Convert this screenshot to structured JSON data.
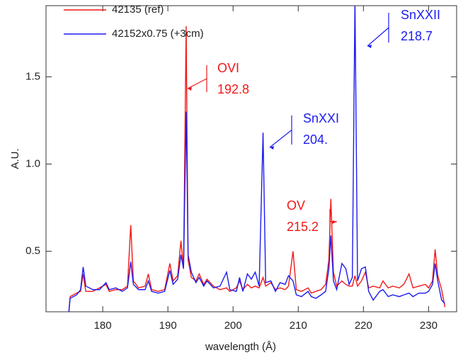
{
  "chart_data": {
    "type": "line",
    "xlabel": "wavelength (Å)",
    "ylabel": "A.U.",
    "xlim": [
      171.3,
      234.3
    ],
    "ylim": [
      0.153,
      1.908
    ],
    "xticks": [
      180,
      190,
      200,
      210,
      220,
      230
    ],
    "yticks": [
      0.5,
      {
        "value": 1,
        "label": "1.0"
      },
      1.5
    ],
    "legend": "upper left",
    "x": [
      174.0,
      174.8,
      175.0,
      176.0,
      176.6,
      177.0,
      177.4,
      178.5,
      179.5,
      180.5,
      181.0,
      182.0,
      183.0,
      183.8,
      184.3,
      184.7,
      185.5,
      186.5,
      187.0,
      187.5,
      188.5,
      189.5,
      190.3,
      190.8,
      191.5,
      192.0,
      192.4,
      192.8,
      193.1,
      193.6,
      194.3,
      194.8,
      195.5,
      196.0,
      197.0,
      198.0,
      199.0,
      199.5,
      200.5,
      201.0,
      201.5,
      202.2,
      202.8,
      203.4,
      204.0,
      204.6,
      205.0,
      205.8,
      206.5,
      207.2,
      208.0,
      208.5,
      209.2,
      209.7,
      210.5,
      211.5,
      212.0,
      212.7,
      213.5,
      214.2,
      214.7,
      215.0,
      215.4,
      215.9,
      216.7,
      217.3,
      217.8,
      218.3,
      218.7,
      219.1,
      219.7,
      220.3,
      220.8,
      221.5,
      222.5,
      223.0,
      223.8,
      224.5,
      225.5,
      226.2,
      227.0,
      227.6,
      228.5,
      229.5,
      230.0,
      230.6,
      231.0,
      231.4,
      232.0,
      232.5
    ],
    "series": [
      {
        "name": "42135 (ref)",
        "color": "#f01818",
        "values": [
          0.15,
          0.15,
          0.24,
          0.26,
          0.27,
          0.37,
          0.27,
          0.27,
          0.29,
          0.31,
          0.27,
          0.28,
          0.28,
          0.3,
          0.65,
          0.33,
          0.29,
          0.3,
          0.37,
          0.28,
          0.27,
          0.28,
          0.43,
          0.33,
          0.36,
          0.56,
          0.4,
          1.79,
          0.45,
          0.35,
          0.33,
          0.37,
          0.31,
          0.34,
          0.3,
          0.28,
          0.29,
          0.27,
          0.29,
          0.33,
          0.28,
          0.31,
          0.29,
          0.3,
          0.29,
          0.35,
          0.3,
          0.32,
          0.28,
          0.29,
          0.28,
          0.3,
          0.5,
          0.28,
          0.27,
          0.29,
          0.26,
          0.27,
          0.28,
          0.31,
          0.45,
          0.8,
          0.38,
          0.3,
          0.33,
          0.31,
          0.3,
          0.3,
          0.36,
          0.3,
          0.33,
          0.38,
          0.29,
          0.3,
          0.29,
          0.33,
          0.29,
          0.3,
          0.29,
          0.31,
          0.37,
          0.29,
          0.3,
          0.31,
          0.29,
          0.33,
          0.51,
          0.36,
          0.28,
          0.18
        ]
      },
      {
        "name": "42152x0.75 (+3cm)",
        "color": "#1c1cf0",
        "values": [
          0.15,
          0.15,
          0.23,
          0.25,
          0.28,
          0.41,
          0.3,
          0.28,
          0.28,
          0.32,
          0.28,
          0.29,
          0.27,
          0.29,
          0.44,
          0.31,
          0.28,
          0.28,
          0.33,
          0.27,
          0.26,
          0.27,
          0.39,
          0.31,
          0.34,
          0.48,
          0.4,
          1.3,
          0.48,
          0.38,
          0.32,
          0.35,
          0.3,
          0.33,
          0.29,
          0.3,
          0.38,
          0.28,
          0.27,
          0.35,
          0.27,
          0.37,
          0.34,
          0.38,
          0.3,
          1.18,
          0.32,
          0.33,
          0.27,
          0.32,
          0.31,
          0.36,
          0.33,
          0.25,
          0.24,
          0.27,
          0.24,
          0.23,
          0.25,
          0.27,
          0.4,
          0.59,
          0.33,
          0.28,
          0.43,
          0.4,
          0.31,
          0.35,
          1.95,
          0.33,
          0.4,
          0.41,
          0.27,
          0.22,
          0.27,
          0.28,
          0.24,
          0.25,
          0.24,
          0.25,
          0.26,
          0.24,
          0.26,
          0.26,
          0.27,
          0.31,
          0.43,
          0.33,
          0.22,
          0.2
        ]
      }
    ],
    "annotations": [
      {
        "lines": [
          "OVI",
          "192.8"
        ],
        "color": "#f01818"
      },
      {
        "lines": [
          "SnXXI",
          "204."
        ],
        "color": "#1c1cf0"
      },
      {
        "lines": [
          "OV",
          "215.2"
        ],
        "color": "#f01818"
      },
      {
        "lines": [
          "SnXXII",
          "218.7"
        ],
        "color": "#1c1cf0"
      }
    ]
  }
}
